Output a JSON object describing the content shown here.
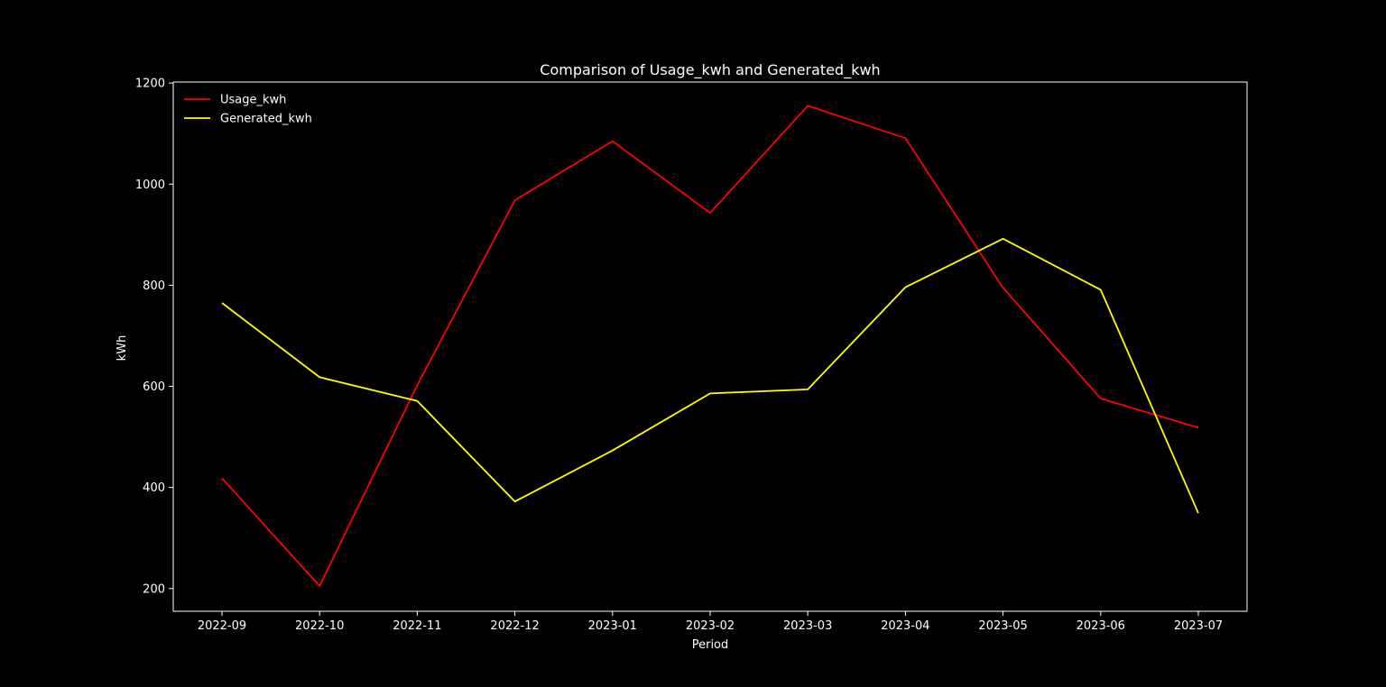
{
  "chart_data": {
    "type": "line",
    "title": "Comparison of Usage_kwh and Generated_kwh",
    "xlabel": "Period",
    "ylabel": "kWh",
    "x": [
      "2022-09",
      "2022-10",
      "2022-11",
      "2022-12",
      "2023-01",
      "2023-02",
      "2023-03",
      "2023-04",
      "2023-05",
      "2023-06",
      "2023-07"
    ],
    "yticks": [
      200,
      400,
      600,
      800,
      1000,
      1200
    ],
    "ylim": [
      155,
      1202
    ],
    "grid": false,
    "legend_position": "top-left",
    "series": [
      {
        "name": "Usage_kwh",
        "color": "#ff0000",
        "values": [
          418,
          205,
          602,
          968,
          1085,
          943,
          1155,
          1091,
          795,
          576,
          518
        ]
      },
      {
        "name": "Generated_kwh",
        "color": "#ffff00",
        "values": [
          765,
          618,
          571,
          372,
          473,
          586,
          594,
          796,
          892,
          791,
          349
        ]
      }
    ]
  }
}
